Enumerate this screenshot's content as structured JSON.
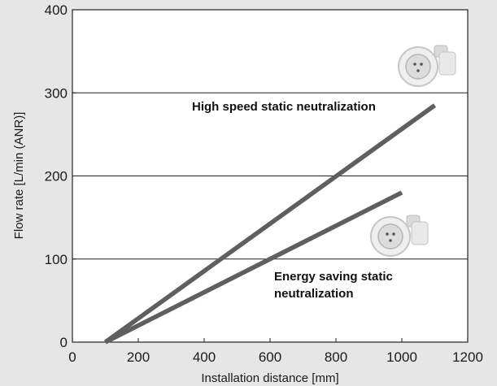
{
  "chart_data": {
    "type": "line",
    "title": "",
    "xlabel": "Installation distance [mm]",
    "ylabel": "Flow rate [L/min (ANR)]",
    "xlim": [
      0,
      1200
    ],
    "ylim": [
      0,
      400
    ],
    "xticks": [
      "0",
      "200",
      "400",
      "600",
      "800",
      "1000",
      "1200"
    ],
    "yticks": [
      "0",
      "100",
      "200",
      "300",
      "400"
    ],
    "grid": "horizontal",
    "series": [
      {
        "name": "High speed static neutralization",
        "color": "#5f5f5f",
        "x": [
          100,
          1100
        ],
        "y": [
          0,
          285
        ]
      },
      {
        "name": "Energy saving static neutralization",
        "color": "#5f5f5f",
        "x": [
          100,
          1000
        ],
        "y": [
          0,
          180
        ]
      }
    ],
    "annotations": [
      {
        "lines": [
          "High speed static neutralization"
        ],
        "icon": "connector-icon"
      },
      {
        "lines": [
          "Energy saving static",
          "neutralization"
        ],
        "icon": "connector-icon"
      }
    ]
  }
}
